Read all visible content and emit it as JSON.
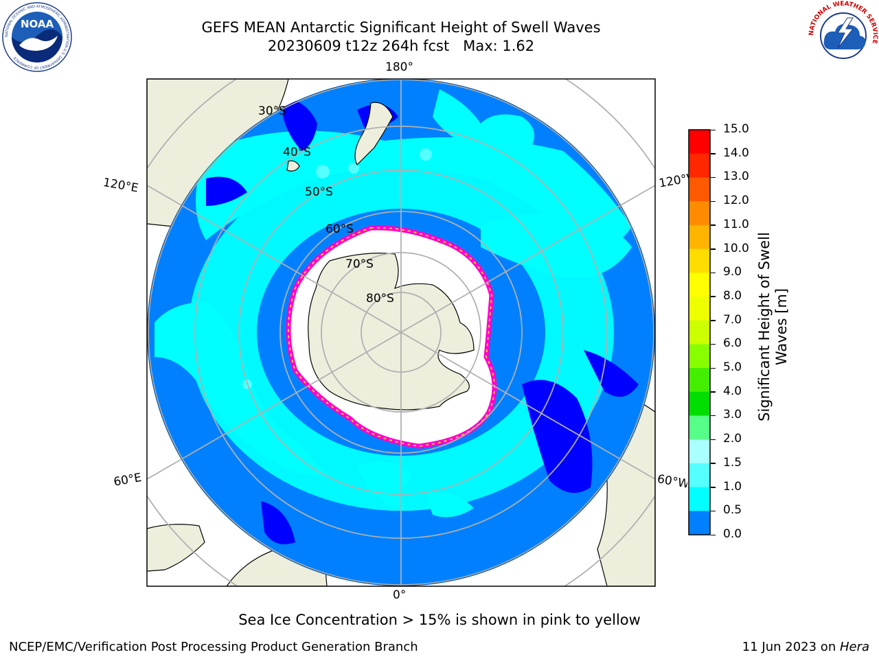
{
  "header": {
    "title_line1": "GEFS MEAN Antarctic Significant Height of Swell Waves",
    "title_line2": "20230609 t12z 264h fcst   Max: 1.62",
    "noaa_logo_text": "NOAA",
    "noaa_ring_text": "NATIONAL OCEANIC AND ATMOSPHERIC ADMINISTRATION U.S. DEPARTMENT OF COMMERCE",
    "nws_ring_text": "NATIONAL WEATHER SERVICE"
  },
  "map": {
    "projection": "south polar stereographic",
    "longitude_labels": {
      "top": "180°",
      "bottom": "0°",
      "upper_left": "120°E",
      "upper_right": "120°W",
      "lower_left": "60°E",
      "lower_right": "60°W"
    },
    "latitude_labels": [
      "30°S",
      "40°S",
      "50°S",
      "60°S",
      "70°S",
      "80°S"
    ],
    "colors": {
      "land": "#eeeedd",
      "ocean_low": "#0000ff",
      "ocean_1": "#0080ff",
      "ocean_cyan": "#00ffff",
      "ocean_light_cyan": "#55ffff",
      "sea_ice_pink": "#ff00cc",
      "sea_ice_yellow": "#ffcc33",
      "grid": "#b0b0b0"
    }
  },
  "colorbar": {
    "label_line1": "Significant Height of Swell",
    "label_line2": "Waves [m]",
    "ticks": [
      "15.0",
      "14.0",
      "13.0",
      "12.0",
      "11.0",
      "10.0",
      "9.0",
      "8.0",
      "7.0",
      "6.0",
      "5.0",
      "4.0",
      "3.0",
      "2.0",
      "1.5",
      "1.0",
      "0.5",
      "0.0"
    ],
    "colors_top_to_bottom": [
      "#ff0000",
      "#ff2600",
      "#ff5a00",
      "#ff8c00",
      "#ffb400",
      "#ffdc00",
      "#ffff00",
      "#eeff00",
      "#ccff00",
      "#88ff00",
      "#44ee00",
      "#00dd00",
      "#55ff88",
      "#aaffff",
      "#55ffff",
      "#00ffff",
      "#0080ff",
      "#0000ff"
    ]
  },
  "caption": "Sea Ice Concentration > 15% is shown in pink to yellow",
  "footer": {
    "left": "NCEP/EMC/Verification Post Processing Product Generation Branch",
    "right_date": "11 Jun 2023 on ",
    "right_machine": "Hera"
  }
}
